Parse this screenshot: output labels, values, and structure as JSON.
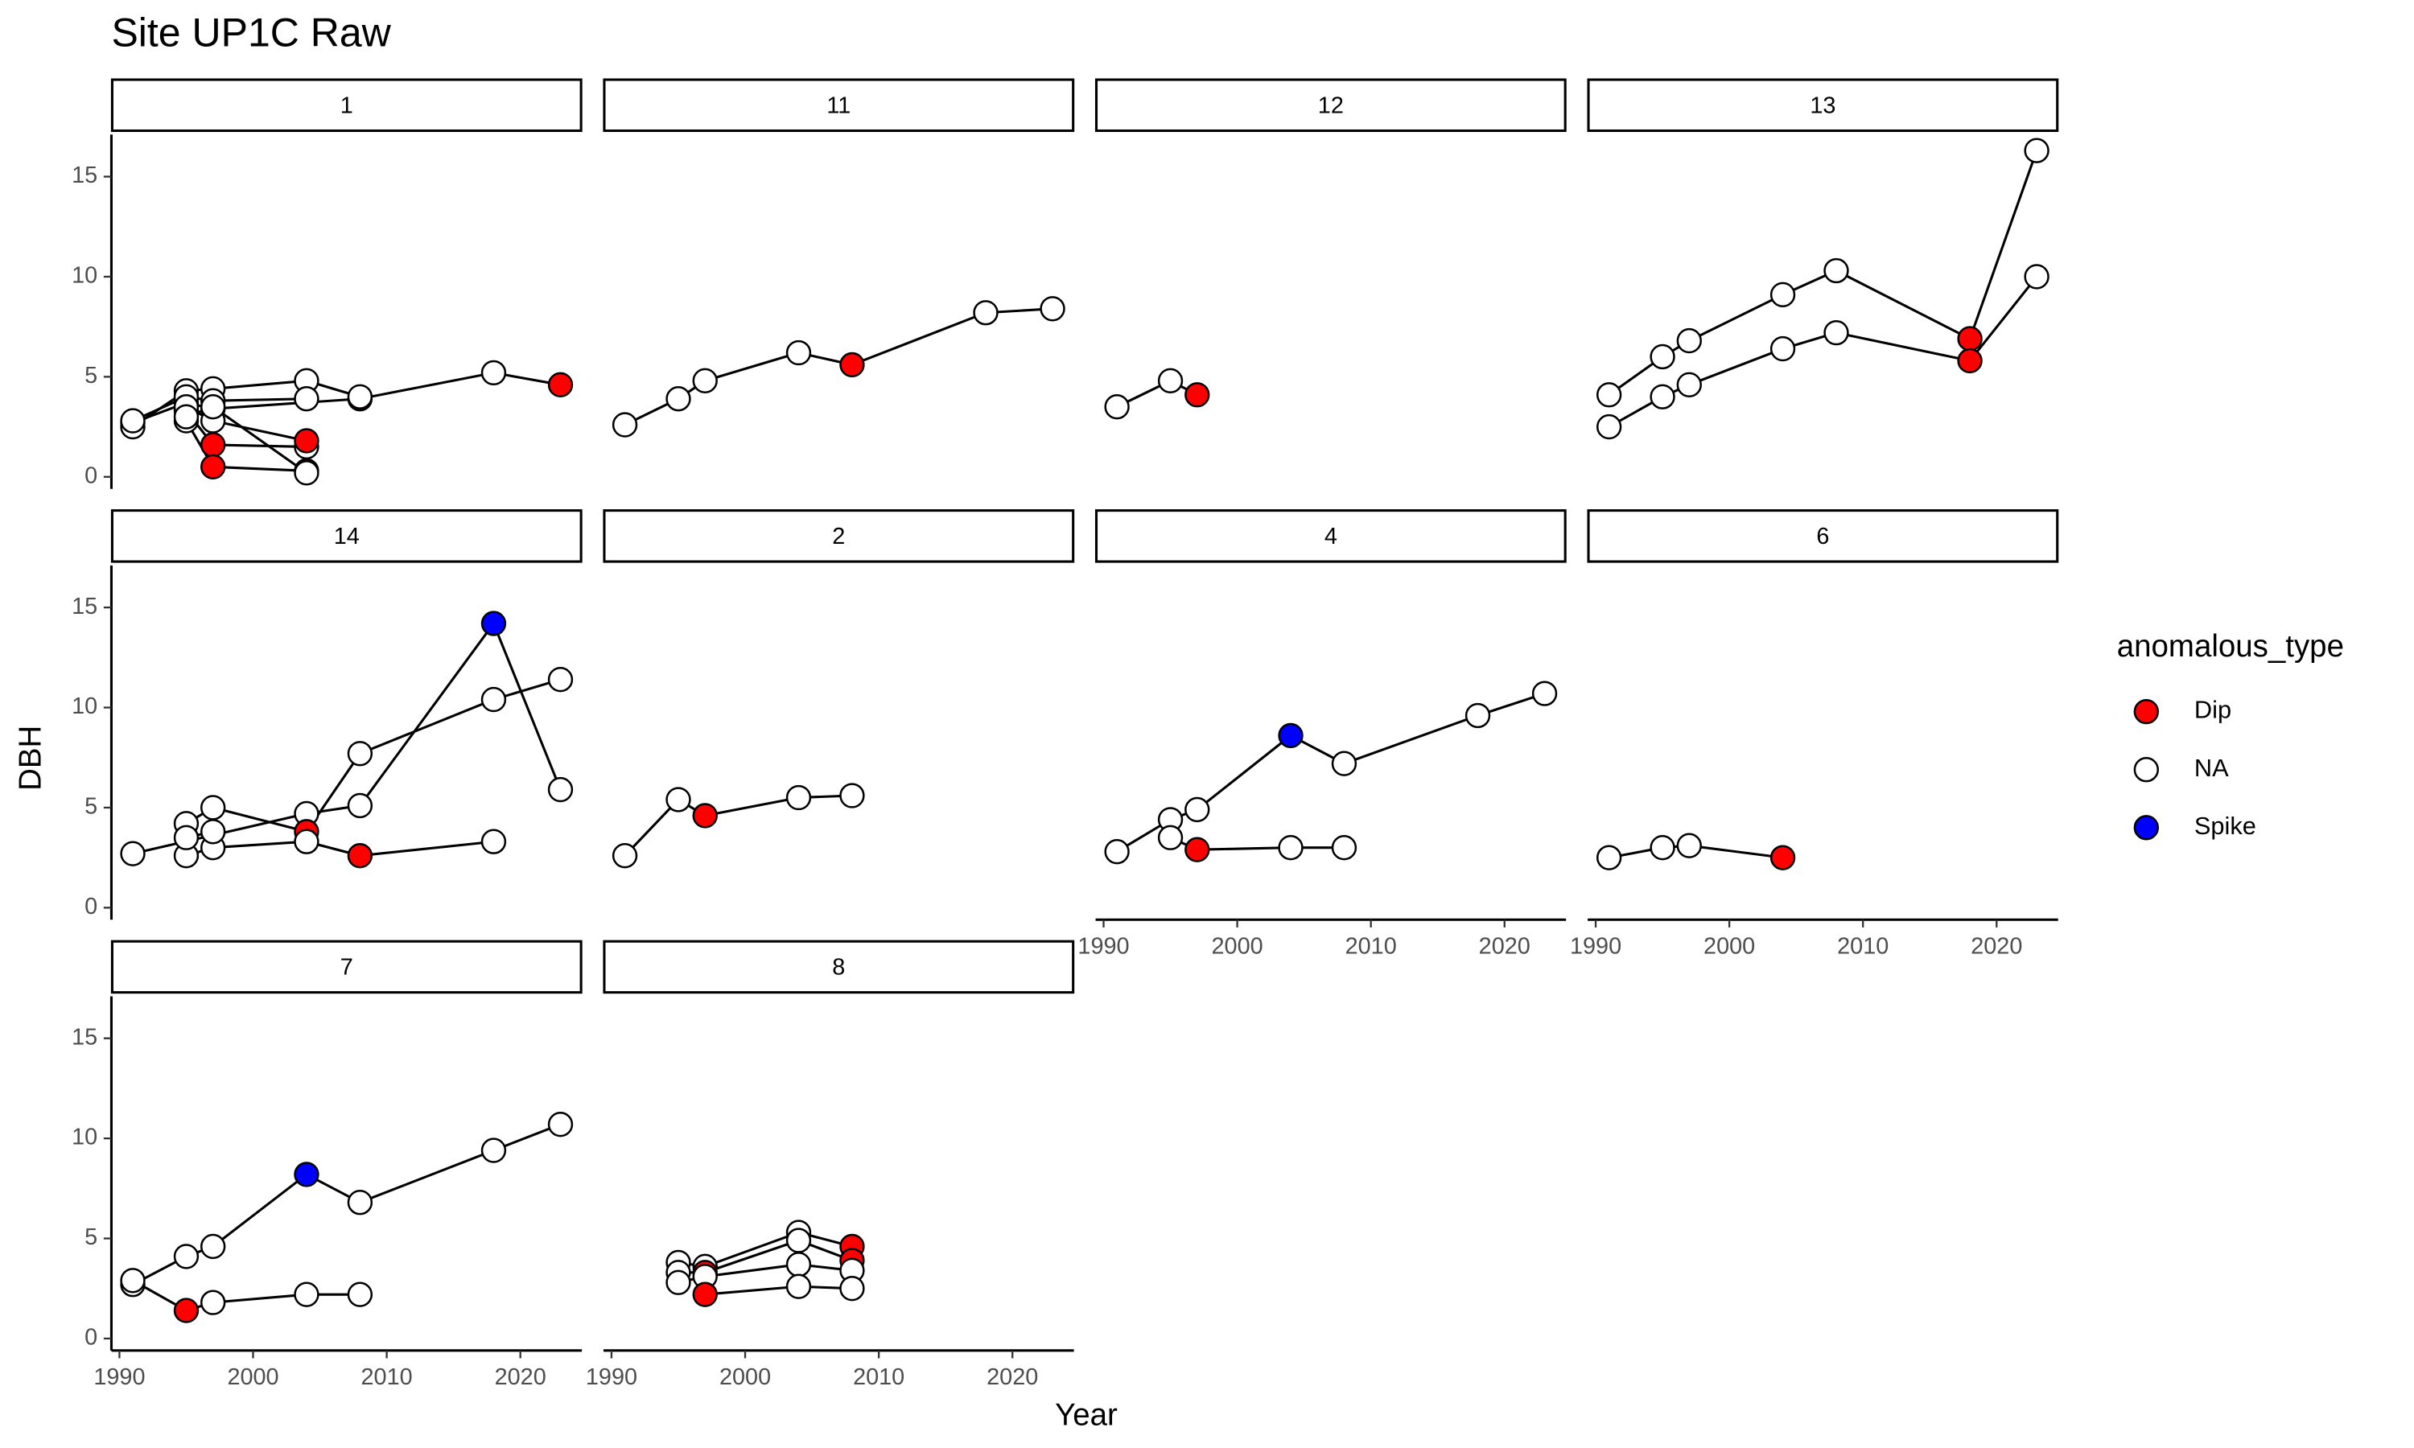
{
  "chart_data": {
    "type": "line",
    "title": "Site UP1C Raw",
    "x_label": "Year",
    "y_label": "DBH",
    "xlim": [
      1989.4,
      2024.6
    ],
    "ylim": [
      -0.6,
      17.1
    ],
    "xticks": [
      1990,
      2000,
      2010,
      2020
    ],
    "yticks": [
      0,
      5,
      10,
      15
    ],
    "legend": {
      "title": "anomalous_type",
      "position": "right",
      "entries": [
        {
          "label": "Dip",
          "color": "#ff0000"
        },
        {
          "label": "NA",
          "color": "#ffffff"
        },
        {
          "label": "Spike",
          "color": "#0000ff"
        }
      ]
    },
    "facets": [
      {
        "name": "1",
        "series": [
          {
            "x": [
              1991,
              1995,
              1997,
              2008,
              2018,
              2023
            ],
            "values": [
              2.7,
              3.7,
              3.4,
              3.9,
              5.2,
              4.6
            ],
            "types": [
              "NA",
              "NA",
              "Dip",
              "Dip",
              "NA",
              "Dip"
            ]
          },
          {
            "x": [
              1991,
              1995,
              1997,
              2004,
              2008
            ],
            "values": [
              2.5,
              4.3,
              4.4,
              4.8,
              4.0
            ],
            "types": [
              "NA",
              "NA",
              "NA",
              "NA",
              "NA"
            ]
          },
          {
            "x": [
              1991,
              1995,
              1997,
              2004
            ],
            "values": [
              2.8,
              4.0,
              3.8,
              3.9
            ],
            "types": [
              "NA",
              "NA",
              "NA",
              "NA"
            ]
          },
          {
            "x": [
              1995,
              1997,
              2004
            ],
            "values": [
              3.3,
              1.6,
              1.5
            ],
            "types": [
              "NA",
              "Dip",
              "NA"
            ]
          },
          {
            "x": [
              1995,
              1997,
              2004
            ],
            "values": [
              2.8,
              0.5,
              0.3
            ],
            "types": [
              "NA",
              "Dip",
              "Dip"
            ]
          },
          {
            "x": [
              1995,
              1997,
              2004
            ],
            "values": [
              3.5,
              2.8,
              1.8
            ],
            "types": [
              "NA",
              "NA",
              "Dip"
            ]
          },
          {
            "x": [
              1995,
              1997,
              2004
            ],
            "values": [
              3.0,
              3.5,
              0.2
            ],
            "types": [
              "NA",
              "NA",
              "NA"
            ]
          }
        ]
      },
      {
        "name": "11",
        "series": [
          {
            "x": [
              1991,
              1995,
              1997,
              2004,
              2008,
              2018,
              2023
            ],
            "values": [
              2.6,
              3.9,
              4.8,
              6.2,
              5.6,
              8.2,
              8.4
            ],
            "types": [
              "NA",
              "NA",
              "NA",
              "NA",
              "Dip",
              "NA",
              "NA"
            ]
          }
        ]
      },
      {
        "name": "12",
        "series": [
          {
            "x": [
              1991,
              1995,
              1997
            ],
            "values": [
              3.5,
              4.8,
              4.1
            ],
            "types": [
              "NA",
              "NA",
              "Dip"
            ]
          }
        ]
      },
      {
        "name": "13",
        "series": [
          {
            "x": [
              1991,
              1995,
              1997,
              2004,
              2008,
              2018,
              2023
            ],
            "values": [
              4.1,
              6.0,
              6.8,
              9.1,
              10.3,
              6.9,
              16.3
            ],
            "types": [
              "NA",
              "NA",
              "NA",
              "NA",
              "NA",
              "Dip",
              "NA"
            ]
          },
          {
            "x": [
              1991,
              1995,
              1997,
              2004,
              2008,
              2018,
              2023
            ],
            "values": [
              2.5,
              4.0,
              4.6,
              6.4,
              7.2,
              5.8,
              10.0
            ],
            "types": [
              "NA",
              "NA",
              "NA",
              "NA",
              "NA",
              "Dip",
              "NA"
            ]
          }
        ]
      },
      {
        "name": "14",
        "series": [
          {
            "x": [
              1991,
              2004,
              2008,
              2018,
              2023
            ],
            "values": [
              2.7,
              4.7,
              5.1,
              14.2,
              5.9
            ],
            "types": [
              "NA",
              "NA",
              "NA",
              "Spike",
              "NA"
            ]
          },
          {
            "x": [
              1995,
              1997,
              2004,
              2008,
              2018,
              2023
            ],
            "values": [
              4.2,
              5.0,
              3.8,
              7.7,
              10.4,
              11.4
            ],
            "types": [
              "NA",
              "NA",
              "Dip",
              "NA",
              "NA",
              "NA"
            ]
          },
          {
            "x": [
              1995,
              1997,
              2004,
              2008,
              2018
            ],
            "values": [
              2.6,
              3.0,
              3.3,
              2.6,
              3.3
            ],
            "types": [
              "NA",
              "NA",
              "NA",
              "Dip",
              "NA"
            ]
          },
          {
            "x": [
              1995,
              1997
            ],
            "values": [
              3.5,
              3.8
            ],
            "types": [
              "NA",
              "NA"
            ]
          }
        ]
      },
      {
        "name": "2",
        "series": [
          {
            "x": [
              1991,
              1995,
              1997,
              2004,
              2008
            ],
            "values": [
              2.6,
              5.4,
              4.6,
              5.5,
              5.6
            ],
            "types": [
              "NA",
              "NA",
              "Dip",
              "NA",
              "NA"
            ]
          }
        ]
      },
      {
        "name": "4",
        "series": [
          {
            "x": [
              1991,
              1995,
              1997,
              2004,
              2008,
              2018,
              2023
            ],
            "values": [
              2.8,
              4.4,
              4.9,
              8.6,
              7.2,
              9.6,
              10.7
            ],
            "types": [
              "NA",
              "NA",
              "NA",
              "Spike",
              "NA",
              "NA",
              "NA"
            ]
          },
          {
            "x": [
              1995,
              1997,
              2004,
              2008
            ],
            "values": [
              3.5,
              2.9,
              3.0,
              3.0
            ],
            "types": [
              "NA",
              "Dip",
              "NA",
              "NA"
            ]
          }
        ]
      },
      {
        "name": "6",
        "series": [
          {
            "x": [
              1991,
              1995,
              1997,
              2004
            ],
            "values": [
              2.5,
              3.0,
              3.1,
              2.5
            ],
            "types": [
              "NA",
              "NA",
              "NA",
              "Dip"
            ]
          }
        ]
      },
      {
        "name": "7",
        "series": [
          {
            "x": [
              1991,
              1995,
              1997,
              2004,
              2008,
              2018,
              2023
            ],
            "values": [
              2.7,
              4.1,
              4.6,
              8.2,
              6.8,
              9.4,
              10.7
            ],
            "types": [
              "NA",
              "NA",
              "NA",
              "Spike",
              "NA",
              "NA",
              "NA"
            ]
          },
          {
            "x": [
              1991,
              1995,
              1997,
              2004,
              2008
            ],
            "values": [
              2.9,
              1.4,
              1.8,
              2.2,
              2.2
            ],
            "types": [
              "NA",
              "Dip",
              "NA",
              "NA",
              "NA"
            ]
          }
        ]
      },
      {
        "name": "8",
        "series": [
          {
            "x": [
              1995,
              1997,
              2004,
              2008
            ],
            "values": [
              3.8,
              3.6,
              5.3,
              4.6
            ],
            "types": [
              "NA",
              "NA",
              "NA",
              "Dip"
            ]
          },
          {
            "x": [
              1995,
              1997,
              2004,
              2008
            ],
            "values": [
              3.3,
              3.3,
              4.9,
              3.9
            ],
            "types": [
              "NA",
              "Dip",
              "NA",
              "Dip"
            ]
          },
          {
            "x": [
              1995,
              1997,
              2004,
              2008
            ],
            "values": [
              2.8,
              3.1,
              3.7,
              3.4
            ],
            "types": [
              "NA",
              "NA",
              "NA",
              "NA"
            ]
          },
          {
            "x": [
              1997,
              2004,
              2008
            ],
            "values": [
              2.2,
              2.6,
              2.5
            ],
            "types": [
              "Dip",
              "NA",
              "NA"
            ]
          }
        ]
      }
    ]
  }
}
